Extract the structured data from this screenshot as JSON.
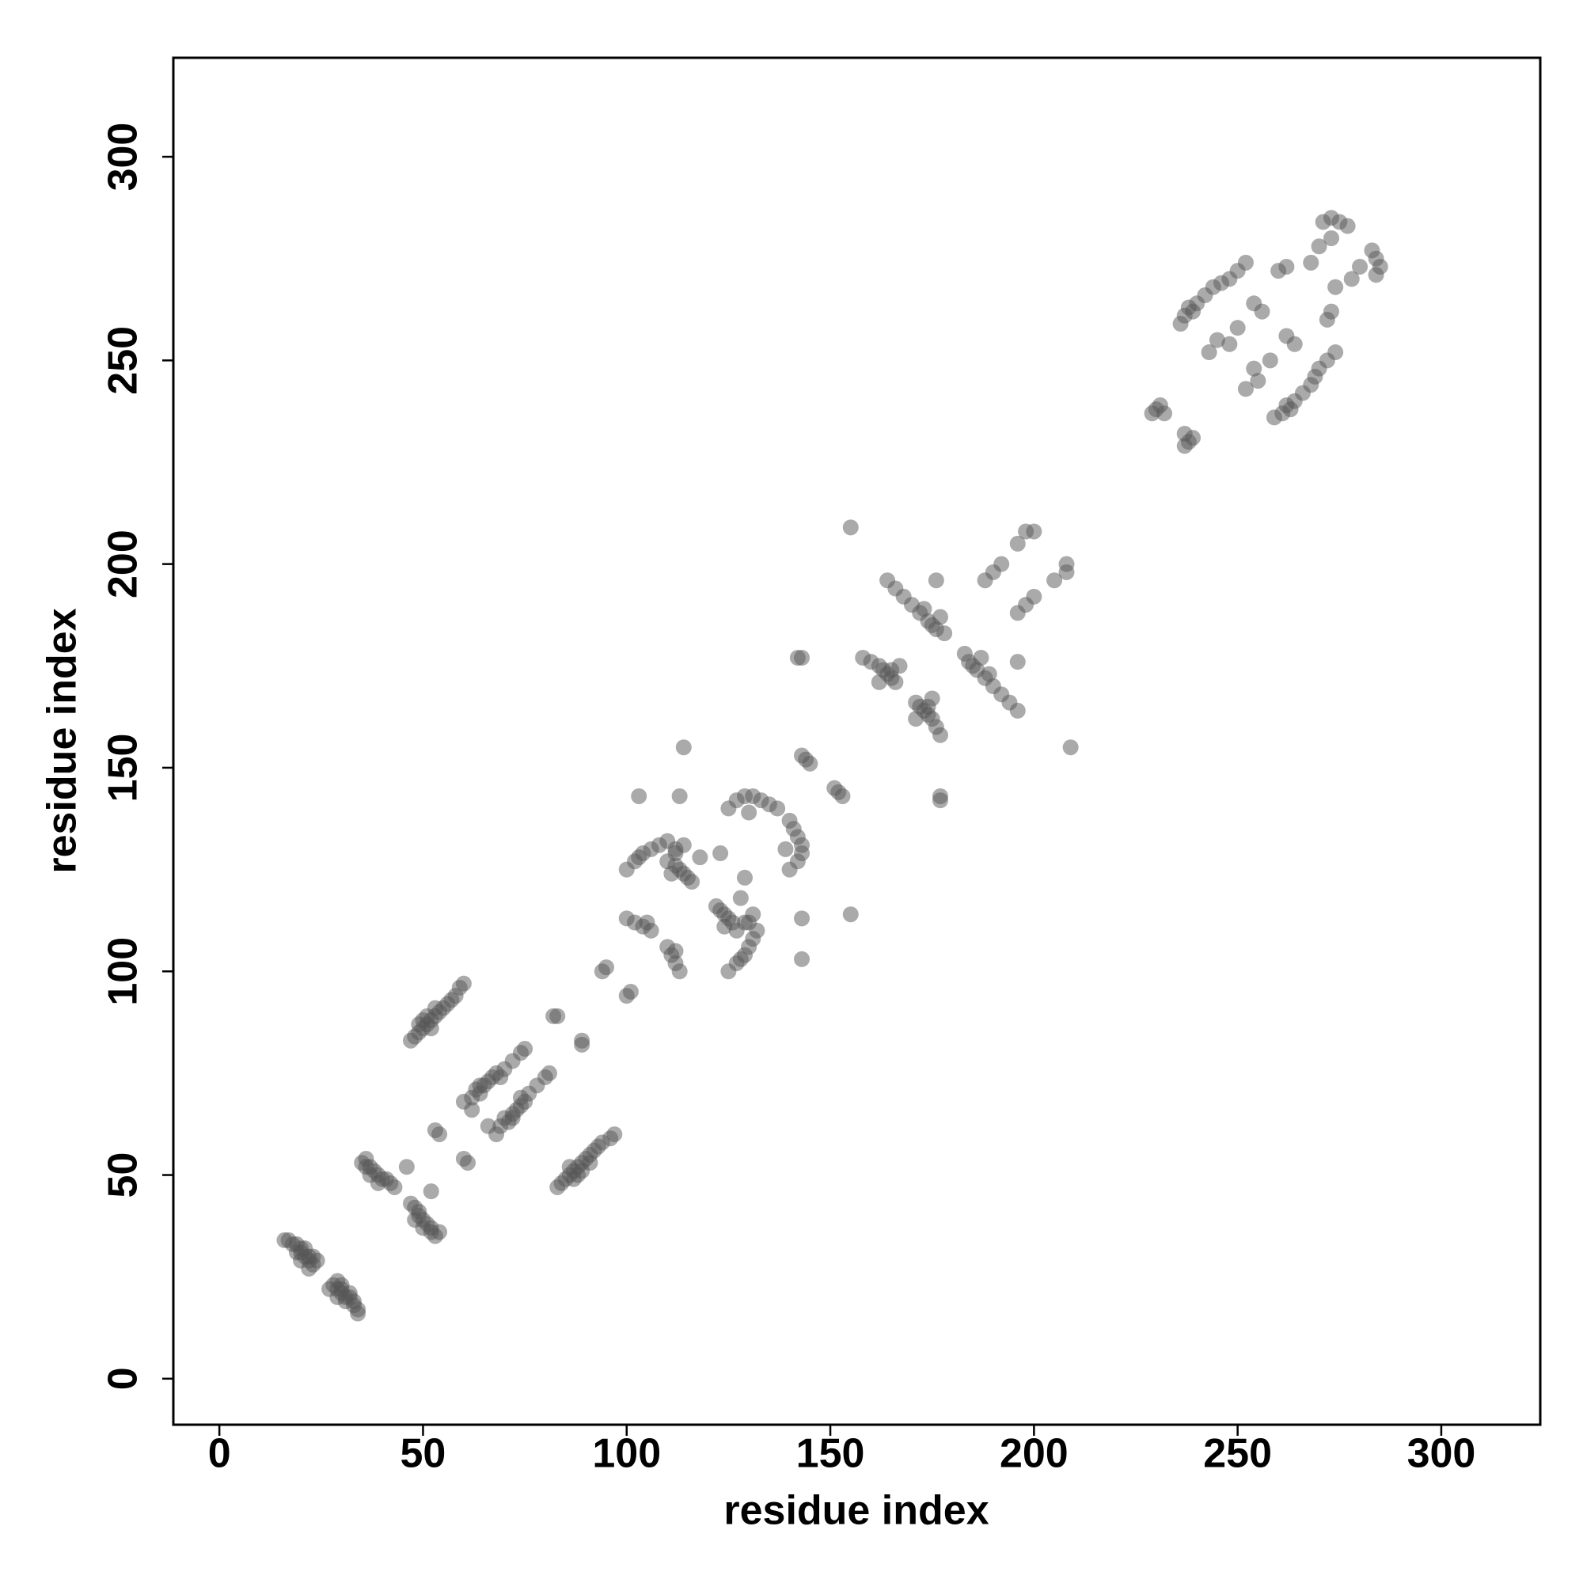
{
  "chart_data": {
    "type": "scatter",
    "xlabel": "residue index",
    "ylabel": "residue index",
    "xlim": [
      -11.3,
      324.3
    ],
    "ylim": [
      -11.3,
      324.3
    ],
    "xticks": [
      0,
      50,
      100,
      150,
      200,
      250,
      300
    ],
    "yticks": [
      0,
      50,
      100,
      150,
      200,
      250,
      300
    ],
    "color": "#555555",
    "x": [
      16,
      17,
      18,
      19,
      20,
      20,
      21,
      22,
      22,
      23,
      21,
      19,
      23,
      24,
      22,
      20,
      35,
      36,
      37,
      38,
      39,
      40,
      41,
      42,
      43,
      37,
      39,
      36,
      46,
      47,
      48,
      49,
      50,
      51,
      52,
      53,
      54,
      55,
      56,
      57,
      58,
      59,
      60,
      49,
      51,
      53,
      50,
      52,
      53,
      54,
      60,
      62,
      63,
      64,
      65,
      66,
      67,
      68,
      70,
      72,
      74,
      75,
      62,
      64,
      69,
      82,
      83,
      95,
      94,
      100,
      102,
      103,
      104,
      106,
      108,
      110,
      112,
      102,
      104,
      100,
      106,
      105,
      110,
      112,
      113,
      114,
      115,
      116,
      112,
      114,
      111,
      118,
      123,
      125,
      127,
      129,
      131,
      133,
      135,
      137,
      130,
      113,
      103,
      114,
      143,
      144,
      145,
      142,
      143,
      158,
      160,
      162,
      163,
      164,
      165,
      166,
      165,
      162,
      167,
      172,
      174,
      175,
      176,
      170,
      168,
      166,
      164,
      178,
      173,
      177,
      176,
      188,
      190,
      192,
      196,
      198,
      200,
      155,
      229,
      230,
      231,
      232,
      237,
      238,
      240,
      242,
      244,
      246,
      248,
      250,
      252,
      236,
      239,
      243,
      245,
      248,
      250,
      254,
      256,
      271,
      273,
      275,
      277,
      270,
      273,
      268,
      260,
      262,
      34,
      34,
      33,
      33,
      32,
      31,
      30,
      30,
      29,
      28,
      32,
      31,
      30,
      29,
      27,
      29,
      53,
      52,
      52,
      51,
      50,
      49,
      49,
      48,
      47,
      50,
      48,
      54,
      52,
      83,
      84,
      85,
      86,
      87,
      88,
      89,
      90,
      91,
      92,
      93,
      94,
      96,
      97,
      87,
      89,
      91,
      88,
      86,
      61,
      60,
      68,
      69,
      71,
      72,
      72,
      73,
      74,
      75,
      76,
      78,
      80,
      81,
      66,
      70,
      74,
      89,
      89,
      101,
      100,
      125,
      127,
      128,
      129,
      130,
      131,
      132,
      130,
      112,
      111,
      113,
      110,
      112,
      127,
      126,
      125,
      124,
      123,
      122,
      129,
      131,
      124,
      128,
      129,
      140,
      142,
      143,
      143,
      142,
      141,
      140,
      139,
      143,
      143,
      155,
      153,
      152,
      151,
      177,
      177,
      177,
      176,
      175,
      174,
      173,
      172,
      171,
      174,
      171,
      175,
      188,
      186,
      185,
      184,
      190,
      192,
      194,
      196,
      183,
      189,
      187,
      196,
      196,
      198,
      200,
      205,
      208,
      208,
      209,
      237,
      238,
      239,
      237,
      261,
      263,
      264,
      266,
      268,
      269,
      270,
      272,
      274,
      259,
      262,
      252,
      255,
      254,
      258,
      264,
      262,
      284,
      285,
      284,
      283,
      278,
      280,
      274,
      272,
      273
    ],
    "values": [
      34,
      34,
      33,
      33,
      32,
      31,
      30,
      30,
      29,
      28,
      32,
      31,
      30,
      29,
      27,
      29,
      53,
      52,
      52,
      51,
      50,
      49,
      49,
      48,
      47,
      50,
      48,
      54,
      52,
      83,
      84,
      85,
      86,
      87,
      88,
      89,
      90,
      91,
      92,
      93,
      94,
      96,
      97,
      87,
      89,
      91,
      88,
      86,
      61,
      60,
      68,
      69,
      71,
      72,
      72,
      73,
      74,
      75,
      76,
      78,
      80,
      81,
      66,
      70,
      74,
      89,
      89,
      101,
      100,
      125,
      127,
      128,
      129,
      130,
      131,
      132,
      130,
      112,
      111,
      113,
      110,
      112,
      127,
      126,
      125,
      124,
      123,
      122,
      129,
      131,
      124,
      128,
      129,
      140,
      142,
      143,
      143,
      142,
      141,
      140,
      139,
      143,
      143,
      155,
      153,
      152,
      151,
      177,
      177,
      177,
      176,
      175,
      174,
      173,
      172,
      171,
      174,
      171,
      175,
      188,
      186,
      185,
      184,
      190,
      192,
      194,
      196,
      183,
      189,
      187,
      196,
      196,
      198,
      200,
      205,
      208,
      208,
      209,
      237,
      238,
      239,
      237,
      261,
      263,
      264,
      266,
      268,
      269,
      270,
      272,
      274,
      259,
      262,
      252,
      255,
      254,
      258,
      264,
      262,
      284,
      285,
      284,
      283,
      278,
      280,
      274,
      272,
      273,
      16,
      17,
      18,
      19,
      20,
      20,
      21,
      22,
      22,
      23,
      21,
      19,
      23,
      24,
      22,
      20,
      35,
      36,
      37,
      38,
      39,
      40,
      41,
      42,
      43,
      37,
      39,
      36,
      46,
      47,
      48,
      49,
      50,
      51,
      52,
      53,
      54,
      55,
      56,
      57,
      58,
      59,
      60,
      49,
      51,
      53,
      50,
      52,
      53,
      54,
      60,
      62,
      63,
      64,
      65,
      66,
      67,
      68,
      70,
      72,
      74,
      75,
      62,
      64,
      69,
      82,
      83,
      95,
      94,
      100,
      102,
      103,
      104,
      106,
      108,
      110,
      112,
      102,
      104,
      100,
      106,
      105,
      110,
      112,
      113,
      114,
      115,
      116,
      112,
      114,
      111,
      118,
      123,
      125,
      127,
      129,
      131,
      133,
      135,
      137,
      130,
      113,
      103,
      114,
      143,
      144,
      145,
      142,
      143,
      158,
      160,
      162,
      163,
      164,
      165,
      166,
      165,
      162,
      167,
      172,
      174,
      175,
      176,
      170,
      168,
      166,
      164,
      178,
      173,
      177,
      176,
      188,
      190,
      192,
      196,
      198,
      200,
      155,
      229,
      230,
      231,
      232,
      237,
      238,
      240,
      242,
      244,
      246,
      248,
      250,
      252,
      236,
      239,
      243,
      245,
      248,
      250,
      254,
      256,
      271,
      273,
      275,
      277,
      270,
      273,
      268,
      260,
      262
    ]
  }
}
